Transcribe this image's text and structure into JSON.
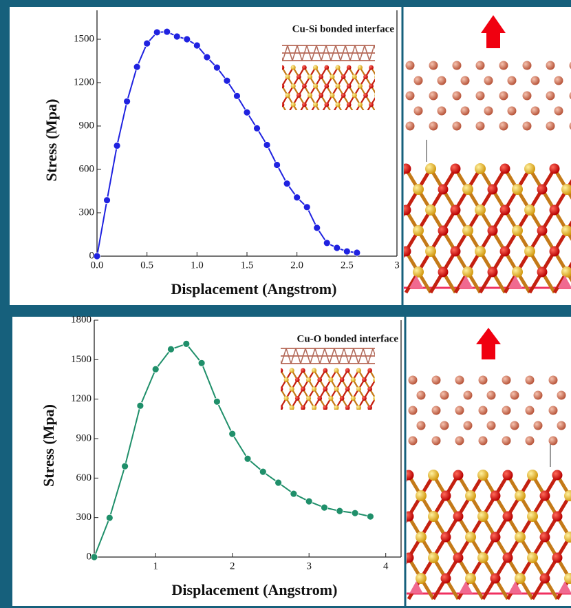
{
  "chart_data": [
    {
      "type": "line",
      "annotation": "Cu-Si bonded interface",
      "x_label": "Displacement (Angstrom)",
      "y_label": "Stress (Mpa)",
      "color": "#1f22e0",
      "x": [
        0,
        0.1,
        0.2,
        0.3,
        0.4,
        0.5,
        0.6,
        0.7,
        0.8,
        0.9,
        1.0,
        1.1,
        1.2,
        1.3,
        1.4,
        1.5,
        1.6,
        1.7,
        1.8,
        1.9,
        2.0,
        2.1,
        2.2,
        2.3,
        2.4,
        2.5,
        2.6
      ],
      "values": [
        0,
        387,
        764,
        1070,
        1309,
        1471,
        1548,
        1552,
        1519,
        1500,
        1457,
        1376,
        1304,
        1213,
        1108,
        994,
        884,
        769,
        631,
        502,
        406,
        339,
        196,
        91,
        57,
        33,
        24
      ],
      "xlim": [
        0,
        3
      ],
      "ylim": [
        0,
        1700
      ],
      "xticks": [
        {
          "value": 0,
          "label": "0.0"
        },
        0.5,
        {
          "value": 1,
          "label": "1.0"
        },
        1.5,
        {
          "value": 2,
          "label": "2.0"
        },
        2.5,
        3
      ],
      "yticks": [
        0,
        300,
        600,
        900,
        1200,
        1500
      ]
    },
    {
      "type": "line",
      "annotation": "Cu-O bonded interface",
      "x_label": "Displacement (Angstrom)",
      "y_label": "Stress (Mpa)",
      "color": "#1f8f6a",
      "x": [
        0.2,
        0.4,
        0.6,
        0.8,
        1.0,
        1.2,
        1.4,
        1.6,
        1.8,
        2.0,
        2.2,
        2.4,
        2.6,
        2.8,
        3.0,
        3.2,
        3.4,
        3.6,
        3.8
      ],
      "values": [
        0,
        298,
        690,
        1150,
        1427,
        1579,
        1620,
        1474,
        1181,
        936,
        747,
        648,
        565,
        481,
        423,
        376,
        350,
        334,
        308
      ],
      "xlim": [
        0.2,
        4.2
      ],
      "ylim": [
        0,
        1800
      ],
      "xticks": [
        1,
        2,
        3,
        4
      ],
      "yticks": [
        0,
        300,
        600,
        900,
        1200,
        1500,
        1800
      ]
    }
  ]
}
